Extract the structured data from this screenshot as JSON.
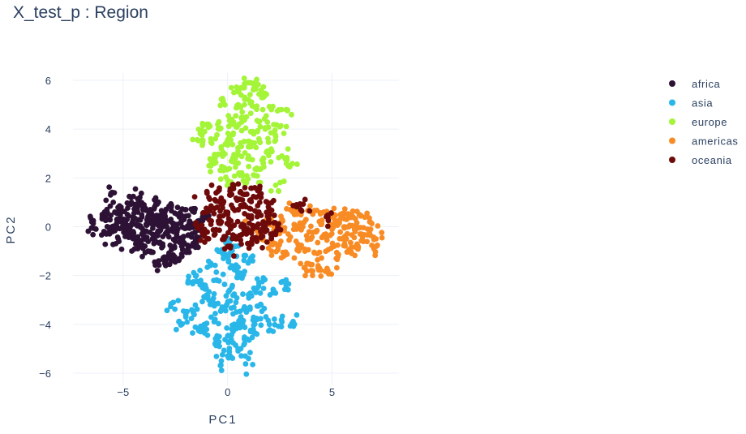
{
  "chart_data": {
    "type": "scatter",
    "title": "X_test_p : Region",
    "xlabel": "PC1",
    "ylabel": "PC2",
    "xlim": [
      -7.4,
      8.2
    ],
    "ylim": [
      -6.5,
      6.3
    ],
    "xticks": [
      -5,
      0,
      5
    ],
    "xtick_labels": [
      "−5",
      "0",
      "5"
    ],
    "yticks": [
      -6,
      -4,
      -2,
      0,
      2,
      4,
      6
    ],
    "ytick_labels": [
      "−6",
      "−4",
      "−2",
      "0",
      "2",
      "4",
      "6"
    ],
    "grid": true,
    "legend_position": "top-right",
    "series": [
      {
        "name": "africa",
        "color": "#2d1236",
        "points": [
          [
            -6.5,
            0.2
          ],
          [
            -6.3,
            -0.1
          ],
          [
            -6.0,
            0.5
          ],
          [
            -5.8,
            -0.3
          ],
          [
            -5.7,
            0.3
          ],
          [
            -5.6,
            1.3
          ],
          [
            -5.5,
            -0.2
          ],
          [
            -5.4,
            0.6
          ],
          [
            -5.3,
            0.0
          ],
          [
            -5.2,
            -0.6
          ],
          [
            -5.1,
            0.8
          ],
          [
            -5.0,
            0.2
          ],
          [
            -4.9,
            -0.4
          ],
          [
            -4.8,
            0.5
          ],
          [
            -4.7,
            -0.1
          ],
          [
            -4.6,
            1.0
          ],
          [
            -4.5,
            0.3
          ],
          [
            -4.4,
            -0.7
          ],
          [
            -4.3,
            0.6
          ],
          [
            -4.2,
            1.2
          ],
          [
            -4.1,
            -0.3
          ],
          [
            -4.0,
            0.9
          ],
          [
            -3.9,
            0.1
          ],
          [
            -3.8,
            -1.0
          ],
          [
            -3.7,
            0.7
          ],
          [
            -3.6,
            -0.5
          ],
          [
            -3.5,
            1.1
          ],
          [
            -3.4,
            0.2
          ],
          [
            -3.3,
            -1.4
          ],
          [
            -3.2,
            0.4
          ],
          [
            -3.1,
            -0.8
          ],
          [
            -3.0,
            0.6
          ],
          [
            -2.9,
            -0.2
          ],
          [
            -2.8,
            -1.1
          ],
          [
            -2.7,
            0.8
          ],
          [
            -2.6,
            0.0
          ],
          [
            -2.5,
            -0.6
          ],
          [
            -2.4,
            0.5
          ],
          [
            -2.3,
            -1.3
          ],
          [
            -2.2,
            0.3
          ],
          [
            -2.1,
            -0.4
          ],
          [
            -2.0,
            0.7
          ],
          [
            -1.9,
            -0.9
          ],
          [
            -1.8,
            0.1
          ],
          [
            -1.7,
            -0.3
          ],
          [
            -1.6,
            0.6
          ],
          [
            -1.5,
            -0.7
          ],
          [
            -1.4,
            0.2
          ],
          [
            -1.3,
            -0.1
          ],
          [
            -1.2,
            0.4
          ],
          [
            -4.9,
            0.0
          ],
          [
            -4.4,
            0.1
          ],
          [
            -3.9,
            -0.2
          ],
          [
            -3.4,
            -0.3
          ],
          [
            -2.9,
            0.2
          ],
          [
            -2.4,
            0.1
          ],
          [
            -1.9,
            0.0
          ],
          [
            -4.1,
            0.4
          ],
          [
            -3.6,
            0.3
          ],
          [
            -3.1,
            0.0
          ],
          [
            -2.6,
            -0.2
          ],
          [
            -4.6,
            -0.2
          ],
          [
            -5.3,
            0.3
          ],
          [
            -3.8,
            -0.6
          ],
          [
            -2.2,
            -0.8
          ],
          [
            -3.0,
            -1.5
          ],
          [
            -2.7,
            -1.4
          ],
          [
            -4.3,
            -0.9
          ]
        ]
      },
      {
        "name": "asia",
        "color": "#29b6e8",
        "points": [
          [
            0.0,
            -0.5
          ],
          [
            0.3,
            -0.8
          ],
          [
            -0.4,
            -1.0
          ],
          [
            0.8,
            -1.2
          ],
          [
            -0.8,
            -1.5
          ],
          [
            0.2,
            -1.6
          ],
          [
            1.2,
            -1.4
          ],
          [
            -1.5,
            -2.0
          ],
          [
            -0.5,
            -2.2
          ],
          [
            0.5,
            -2.0
          ],
          [
            1.5,
            -2.3
          ],
          [
            -1.2,
            -2.5
          ],
          [
            0.1,
            -2.6
          ],
          [
            1.0,
            -2.8
          ],
          [
            -0.9,
            -3.0
          ],
          [
            0.4,
            -3.1
          ],
          [
            1.6,
            -3.2
          ],
          [
            -0.3,
            -3.4
          ],
          [
            0.9,
            -3.5
          ],
          [
            -1.6,
            -3.6
          ],
          [
            -0.6,
            -3.8
          ],
          [
            0.6,
            -3.9
          ],
          [
            1.4,
            -3.8
          ],
          [
            -1.1,
            -4.1
          ],
          [
            0.2,
            -4.2
          ],
          [
            1.1,
            -4.3
          ],
          [
            -0.4,
            -4.5
          ],
          [
            0.8,
            -4.6
          ],
          [
            2.0,
            -4.0
          ],
          [
            2.6,
            -3.9
          ],
          [
            3.2,
            -4.0
          ],
          [
            -2.6,
            -3.1
          ],
          [
            -2.0,
            -3.7
          ],
          [
            -2.2,
            -4.0
          ],
          [
            0.0,
            -5.3
          ],
          [
            -0.3,
            -5.5
          ],
          [
            1.0,
            -5.4
          ],
          [
            0.5,
            -5.0
          ],
          [
            -0.6,
            -4.8
          ],
          [
            1.4,
            -4.4
          ],
          [
            -0.2,
            -1.3
          ],
          [
            0.6,
            -1.9
          ],
          [
            -1.0,
            -2.8
          ],
          [
            0.3,
            -3.3
          ],
          [
            -0.7,
            -3.2
          ],
          [
            1.3,
            -2.6
          ],
          [
            2.2,
            -2.6
          ],
          [
            2.8,
            -2.4
          ],
          [
            -1.9,
            -2.3
          ],
          [
            0.1,
            -4.7
          ],
          [
            0.7,
            -4.0
          ],
          [
            -1.3,
            -4.3
          ]
        ]
      },
      {
        "name": "europe",
        "color": "#a4f438",
        "points": [
          [
            1.1,
            5.9
          ],
          [
            0.8,
            5.7
          ],
          [
            1.4,
            5.8
          ],
          [
            1.7,
            5.3
          ],
          [
            0.5,
            5.0
          ],
          [
            1.0,
            5.2
          ],
          [
            -0.2,
            5.1
          ],
          [
            0.7,
            4.7
          ],
          [
            1.3,
            4.9
          ],
          [
            2.1,
            4.8
          ],
          [
            0.2,
            4.4
          ],
          [
            0.9,
            4.5
          ],
          [
            1.5,
            4.3
          ],
          [
            -1.0,
            4.2
          ],
          [
            -0.4,
            4.0
          ],
          [
            0.4,
            4.1
          ],
          [
            1.2,
            3.9
          ],
          [
            1.8,
            4.0
          ],
          [
            -0.8,
            3.6
          ],
          [
            0.1,
            3.7
          ],
          [
            0.8,
            3.5
          ],
          [
            1.5,
            3.6
          ],
          [
            2.3,
            3.7
          ],
          [
            -1.2,
            3.4
          ],
          [
            -0.3,
            3.2
          ],
          [
            0.5,
            3.1
          ],
          [
            1.1,
            3.3
          ],
          [
            1.9,
            3.1
          ],
          [
            -0.6,
            2.8
          ],
          [
            0.3,
            2.7
          ],
          [
            1.0,
            2.9
          ],
          [
            1.7,
            2.6
          ],
          [
            2.6,
            2.9
          ],
          [
            2.9,
            2.5
          ],
          [
            -0.2,
            2.3
          ],
          [
            0.6,
            2.2
          ],
          [
            1.3,
            2.1
          ],
          [
            0.0,
            1.9
          ],
          [
            0.9,
            1.8
          ],
          [
            2.3,
            1.7
          ],
          [
            -0.8,
            2.5
          ],
          [
            2.8,
            4.8
          ],
          [
            2.5,
            4.1
          ],
          [
            0.3,
            5.5
          ],
          [
            1.6,
            5.6
          ],
          [
            -1.1,
            3.9
          ],
          [
            0.0,
            3.4
          ],
          [
            1.4,
            2.4
          ]
        ]
      },
      {
        "name": "americas",
        "color": "#f88b24",
        "points": [
          [
            1.2,
            0.0
          ],
          [
            1.6,
            -0.4
          ],
          [
            2.0,
            0.1
          ],
          [
            2.3,
            -0.7
          ],
          [
            2.6,
            0.3
          ],
          [
            2.9,
            -0.3
          ],
          [
            3.2,
            0.5
          ],
          [
            3.4,
            -0.9
          ],
          [
            3.6,
            0.0
          ],
          [
            3.9,
            -0.5
          ],
          [
            4.1,
            0.6
          ],
          [
            4.3,
            -1.1
          ],
          [
            4.5,
            0.1
          ],
          [
            4.7,
            -0.3
          ],
          [
            4.9,
            0.4
          ],
          [
            5.1,
            -0.8
          ],
          [
            5.3,
            0.2
          ],
          [
            5.5,
            -0.5
          ],
          [
            5.7,
            0.3
          ],
          [
            5.9,
            -1.0
          ],
          [
            6.1,
            -0.2
          ],
          [
            6.3,
            0.5
          ],
          [
            6.5,
            -0.6
          ],
          [
            6.7,
            -0.1
          ],
          [
            7.0,
            -0.9
          ],
          [
            7.1,
            -0.5
          ],
          [
            6.8,
            0.2
          ],
          [
            6.2,
            -0.8
          ],
          [
            5.8,
            0.0
          ],
          [
            5.2,
            -1.3
          ],
          [
            4.8,
            -1.8
          ],
          [
            4.4,
            -1.7
          ],
          [
            3.8,
            -1.5
          ],
          [
            4.0,
            -1.8
          ],
          [
            2.7,
            -1.2
          ],
          [
            2.1,
            -1.0
          ],
          [
            3.0,
            0.7
          ],
          [
            4.6,
            0.6
          ],
          [
            5.4,
            0.5
          ],
          [
            6.0,
            0.4
          ],
          [
            3.3,
            -0.1
          ],
          [
            4.2,
            -0.2
          ],
          [
            5.0,
            -0.1
          ],
          [
            5.6,
            -0.7
          ],
          [
            6.4,
            -0.3
          ],
          [
            3.7,
            -1.0
          ],
          [
            2.4,
            -0.2
          ]
        ]
      },
      {
        "name": "oceania",
        "color": "#6e0a0a",
        "points": [
          [
            -0.9,
            1.2
          ],
          [
            -0.4,
            1.5
          ],
          [
            0.1,
            1.3
          ],
          [
            0.6,
            1.4
          ],
          [
            1.1,
            1.1
          ],
          [
            1.6,
            1.2
          ],
          [
            1.9,
            1.0
          ],
          [
            -1.0,
            0.6
          ],
          [
            -0.5,
            0.8
          ],
          [
            0.0,
            0.5
          ],
          [
            0.5,
            0.7
          ],
          [
            1.0,
            0.4
          ],
          [
            1.5,
            0.6
          ],
          [
            2.0,
            0.5
          ],
          [
            -0.8,
            0.1
          ],
          [
            -0.3,
            0.2
          ],
          [
            0.2,
            0.0
          ],
          [
            0.7,
            0.1
          ],
          [
            1.2,
            -0.1
          ],
          [
            1.7,
            0.2
          ],
          [
            -1.1,
            -0.4
          ],
          [
            -0.6,
            -0.3
          ],
          [
            -0.1,
            -0.4
          ],
          [
            0.4,
            -0.5
          ],
          [
            0.9,
            -0.3
          ],
          [
            1.4,
            -0.6
          ],
          [
            1.8,
            -0.2
          ],
          [
            2.4,
            0.0
          ],
          [
            3.3,
            0.9
          ],
          [
            3.5,
            0.7
          ],
          [
            4.8,
            0.4
          ],
          [
            2.1,
            -0.4
          ],
          [
            -1.4,
            0.0
          ],
          [
            0.3,
            1.7
          ],
          [
            1.3,
            1.6
          ],
          [
            -0.2,
            1.0
          ],
          [
            0.8,
            0.9
          ],
          [
            1.6,
            -0.4
          ],
          [
            0.1,
            -0.8
          ],
          [
            1.1,
            -0.7
          ]
        ]
      }
    ]
  }
}
